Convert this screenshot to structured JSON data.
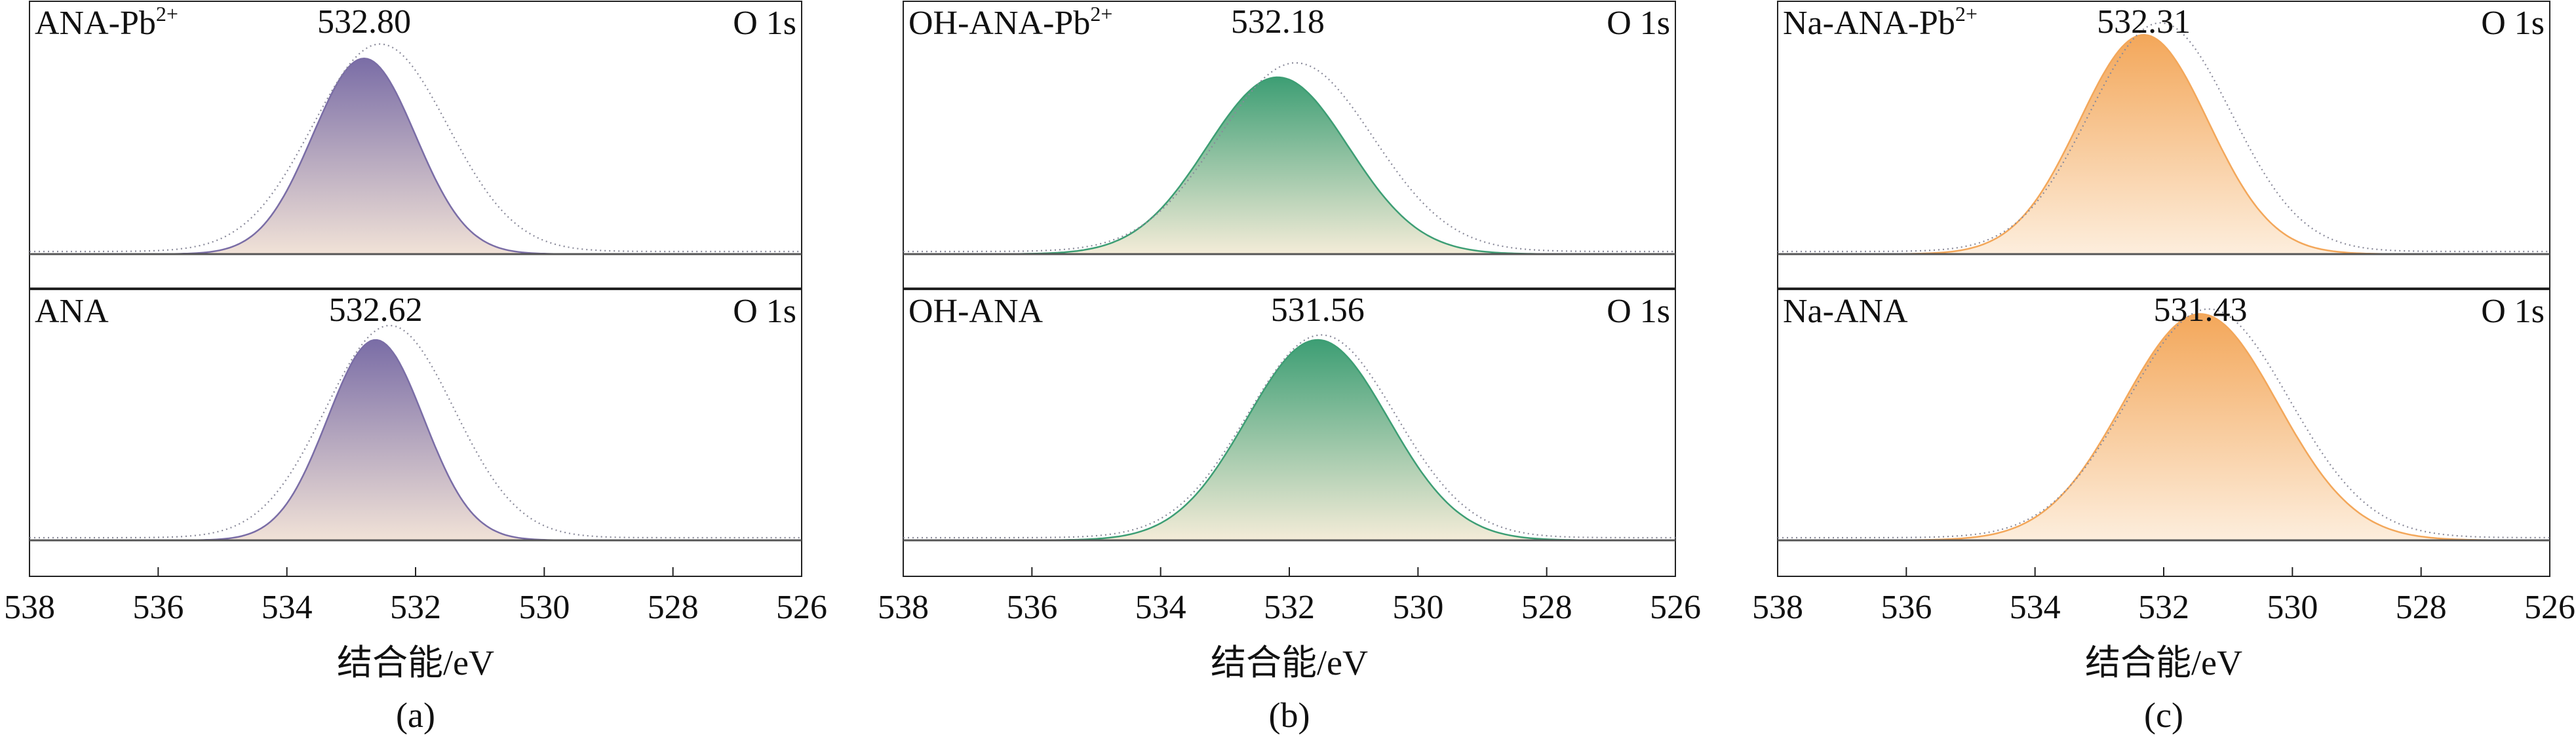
{
  "chart_data": [
    {
      "type": "line",
      "panel_label": "(a)",
      "xlabel": "结合能/eV",
      "xlim": [
        538,
        526
      ],
      "x_reversed": true,
      "x_ticks": [
        "538",
        "536",
        "534",
        "532",
        "530",
        "528",
        "526"
      ],
      "fill_colors": [
        "#7a6da6",
        "#f1e2d7"
      ],
      "subplots": [
        {
          "label": "ANA-Pb²⁺",
          "label_base": "ANA-Pb",
          "label_sup": "2+",
          "region": "O 1s",
          "peak_label": "532.80",
          "fit": {
            "center": 532.8,
            "sigma": 0.8,
            "amplitude": 0.83
          },
          "raw": {
            "center": 532.55,
            "sigma": 1.05,
            "amplitude": 0.88
          }
        },
        {
          "label": "ANA",
          "label_base": "ANA",
          "label_sup": "",
          "region": "O 1s",
          "peak_label": "532.62",
          "fit": {
            "center": 532.62,
            "sigma": 0.75,
            "amplitude": 0.85
          },
          "raw": {
            "center": 532.4,
            "sigma": 1.0,
            "amplitude": 0.9
          }
        }
      ]
    },
    {
      "type": "line",
      "panel_label": "(b)",
      "xlabel": "结合能/eV",
      "xlim": [
        538,
        526
      ],
      "x_reversed": true,
      "x_ticks": [
        "538",
        "536",
        "534",
        "532",
        "530",
        "528",
        "526"
      ],
      "fill_colors": [
        "#3d9e74",
        "#f4ecd8"
      ],
      "subplots": [
        {
          "label": "OH-ANA-Pb²⁺",
          "label_base": "OH-ANA-Pb",
          "label_sup": "2+",
          "region": "O 1s",
          "peak_label": "532.18",
          "fit": {
            "center": 532.18,
            "sigma": 1.1,
            "amplitude": 0.75
          },
          "raw": {
            "center": 531.9,
            "sigma": 1.2,
            "amplitude": 0.8
          }
        },
        {
          "label": "OH-ANA",
          "label_base": "OH-ANA",
          "label_sup": "",
          "region": "O 1s",
          "peak_label": "531.56",
          "fit": {
            "center": 531.56,
            "sigma": 1.1,
            "amplitude": 0.85
          },
          "raw": {
            "center": 531.5,
            "sigma": 1.15,
            "amplitude": 0.86
          }
        }
      ]
    },
    {
      "type": "line",
      "panel_label": "(c)",
      "xlabel": "结合能/eV",
      "xlim": [
        538,
        526
      ],
      "x_reversed": true,
      "x_ticks": [
        "538",
        "536",
        "534",
        "532",
        "530",
        "528",
        "526"
      ],
      "fill_colors": [
        "#f3a75a",
        "#fdeedd"
      ],
      "subplots": [
        {
          "label": "Na-ANA-Pb²⁺",
          "label_base": "Na-ANA-Pb",
          "label_sup": "2+",
          "region": "O 1s",
          "peak_label": "532.31",
          "fit": {
            "center": 532.31,
            "sigma": 1.0,
            "amplitude": 0.93
          },
          "raw": {
            "center": 532.05,
            "sigma": 1.1,
            "amplitude": 0.97
          }
        },
        {
          "label": "Na-ANA",
          "label_base": "Na-ANA",
          "label_sup": "",
          "region": "O 1s",
          "peak_label": "531.43",
          "fit": {
            "center": 531.43,
            "sigma": 1.2,
            "amplitude": 0.96
          },
          "raw": {
            "center": 531.3,
            "sigma": 1.25,
            "amplitude": 0.97
          }
        }
      ]
    }
  ]
}
